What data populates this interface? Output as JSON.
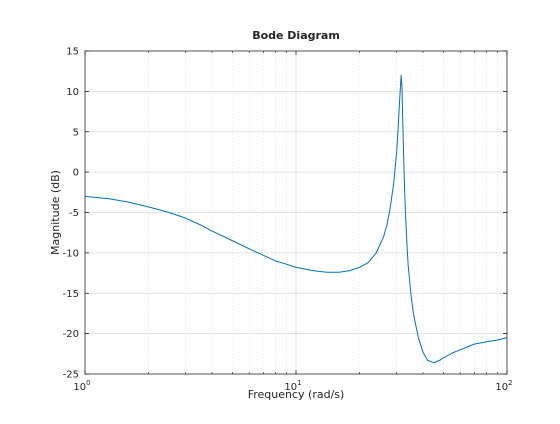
{
  "chart_data": {
    "type": "line",
    "title": "Bode Diagram",
    "xlabel": "Frequency  (rad/s)",
    "ylabel": "Magnitude (dB)",
    "xscale": "log",
    "xlim": [
      1,
      100
    ],
    "ylim": [
      -25,
      15
    ],
    "grid": true,
    "x_ticks": [
      {
        "value": 1,
        "base": "10",
        "exp": "0"
      },
      {
        "value": 10,
        "base": "10",
        "exp": "1"
      },
      {
        "value": 100,
        "base": "10",
        "exp": "2"
      }
    ],
    "y_ticks": [
      15,
      10,
      5,
      0,
      -5,
      -10,
      -15,
      -20,
      -25
    ],
    "series": [
      {
        "color": "#0072bd",
        "x": [
          1,
          1.3,
          1.6,
          2,
          2.5,
          3,
          3.5,
          4,
          5,
          6,
          7,
          8,
          9,
          10,
          11,
          12,
          14,
          16,
          18,
          20,
          22,
          24,
          26,
          27,
          28,
          29,
          30,
          30.5,
          31,
          31.5,
          31.8,
          32,
          32.3,
          32.6,
          33,
          33.5,
          34,
          35,
          36,
          38,
          40,
          42,
          45,
          48,
          50,
          55,
          60,
          70,
          80,
          90,
          100
        ],
        "y": [
          -3.0,
          -3.3,
          -3.7,
          -4.3,
          -5.0,
          -5.7,
          -6.5,
          -7.3,
          -8.5,
          -9.5,
          -10.3,
          -11.0,
          -11.4,
          -11.8,
          -12.0,
          -12.2,
          -12.4,
          -12.4,
          -12.2,
          -11.8,
          -11.2,
          -10.0,
          -8.0,
          -6.5,
          -4.3,
          -1.5,
          2.5,
          5.5,
          9.0,
          12.0,
          10.5,
          7.0,
          3.0,
          -1.0,
          -5.0,
          -8.5,
          -11.5,
          -15.0,
          -17.5,
          -20.5,
          -22.3,
          -23.3,
          -23.6,
          -23.3,
          -23.0,
          -22.4,
          -22.0,
          -21.3,
          -21.0,
          -20.8,
          -20.5
        ]
      }
    ]
  }
}
